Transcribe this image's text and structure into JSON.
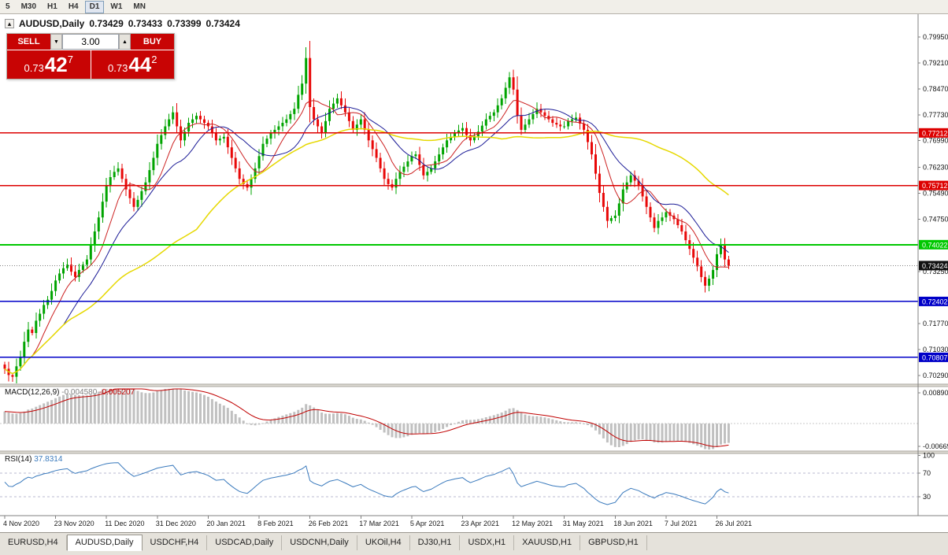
{
  "toolbar": {
    "timeframes": [
      "5",
      "M30",
      "H1",
      "H4",
      "D1",
      "W1",
      "MN"
    ],
    "active": "D1"
  },
  "icons": {
    "collapse": "▴",
    "spin_down": "▼",
    "spin_up": "▲"
  },
  "chart_header": {
    "symbol_period": "AUDUSD,Daily",
    "open": "0.73429",
    "high": "0.73433",
    "low": "0.73399",
    "close": "0.73424"
  },
  "trade_panel": {
    "sell_label": "SELL",
    "buy_label": "BUY",
    "volume": "3.00",
    "sell_price": {
      "prefix": "0.73",
      "big": "42",
      "sup": "7"
    },
    "buy_price": {
      "prefix": "0.73",
      "big": "44",
      "sup": "2"
    }
  },
  "colors": {
    "up_candle": "#00a400",
    "down_candle": "#e80808",
    "macd_hist": "#c0c0c0",
    "macd_signal": "#c00000",
    "current_price_bg": "#111111",
    "accent_red": "#c80404"
  },
  "chart_data": {
    "type": "candlestick",
    "title": "AUDUSD,Daily",
    "x_axis": {
      "labels": [
        "4 Nov 2020",
        "23 Nov 2020",
        "11 Dec 2020",
        "31 Dec 2020",
        "20 Jan 2021",
        "8 Feb 2021",
        "26 Feb 2021",
        "17 Mar 2021",
        "5 Apr 2021",
        "23 Apr 2021",
        "12 May 2021",
        "31 May 2021",
        "18 Jun 2021",
        "7 Jul 2021",
        "26 Jul 2021"
      ],
      "day_index": [
        0,
        13,
        26,
        39,
        52,
        65,
        78,
        91,
        104,
        117,
        130,
        143,
        156,
        169,
        182
      ]
    },
    "y_axis_ticks": [
      "0.79950",
      "0.79210",
      "0.78470",
      "0.77730",
      "0.76990",
      "0.76230",
      "0.75490",
      "0.74750",
      "0.73250",
      "0.71770",
      "0.71030",
      "0.70290"
    ],
    "close": [
      0.7048,
      0.703,
      0.7025,
      0.7055,
      0.708,
      0.7125,
      0.716,
      0.715,
      0.7185,
      0.7205,
      0.723,
      0.7245,
      0.727,
      0.73,
      0.732,
      0.7335,
      0.7345,
      0.7325,
      0.731,
      0.733,
      0.7345,
      0.736,
      0.74,
      0.744,
      0.748,
      0.7525,
      0.757,
      0.7595,
      0.761,
      0.762,
      0.759,
      0.756,
      0.7535,
      0.751,
      0.753,
      0.7555,
      0.758,
      0.7615,
      0.765,
      0.769,
      0.7715,
      0.774,
      0.776,
      0.778,
      0.774,
      0.77,
      0.7725,
      0.775,
      0.776,
      0.777,
      0.776,
      0.775,
      0.774,
      0.772,
      0.77,
      0.7705,
      0.771,
      0.768,
      0.765,
      0.762,
      0.759,
      0.7575,
      0.7565,
      0.759,
      0.762,
      0.7655,
      0.769,
      0.7705,
      0.772,
      0.773,
      0.774,
      0.775,
      0.776,
      0.7775,
      0.779,
      0.783,
      0.7862,
      0.7935,
      0.7795,
      0.776,
      0.774,
      0.772,
      0.7755,
      0.779,
      0.7805,
      0.782,
      0.78,
      0.778,
      0.7755,
      0.773,
      0.7745,
      0.776,
      0.773,
      0.77,
      0.7675,
      0.765,
      0.762,
      0.759,
      0.7575,
      0.7565,
      0.759,
      0.761,
      0.7625,
      0.764,
      0.7655,
      0.766,
      0.763,
      0.76,
      0.761,
      0.762,
      0.764,
      0.766,
      0.768,
      0.77,
      0.771,
      0.772,
      0.7728,
      0.7735,
      0.7715,
      0.77,
      0.7712,
      0.7725,
      0.7742,
      0.776,
      0.777,
      0.778,
      0.78,
      0.782,
      0.785,
      0.788,
      0.7845,
      0.777,
      0.773,
      0.7745,
      0.776,
      0.7775,
      0.779,
      0.778,
      0.777,
      0.776,
      0.775,
      0.7745,
      0.774,
      0.774,
      0.7755,
      0.776,
      0.7765,
      0.7748,
      0.773,
      0.7695,
      0.766,
      0.7605,
      0.755,
      0.751,
      0.747,
      0.7478,
      0.7485,
      0.752,
      0.756,
      0.758,
      0.76,
      0.7585,
      0.757,
      0.754,
      0.751,
      0.748,
      0.745,
      0.747,
      0.748,
      0.7495,
      0.7485,
      0.7475,
      0.7458,
      0.744,
      0.7415,
      0.739,
      0.7365,
      0.734,
      0.731,
      0.7285,
      0.7305,
      0.733,
      0.7375,
      0.74,
      0.736,
      0.7342
    ],
    "horizontal_lines": [
      {
        "value": 0.77212,
        "label": "0.77212",
        "color": "#dd0000",
        "width": 1.4
      },
      {
        "value": 0.75712,
        "label": "0.75712",
        "color": "#dd0000",
        "width": 1.4
      },
      {
        "value": 0.74022,
        "label": "0.74022",
        "color": "#00c800",
        "width": 2
      },
      {
        "value": 0.72402,
        "label": "0.72402",
        "color": "#0000c8",
        "width": 1.6
      },
      {
        "value": 0.70807,
        "label": "0.70807",
        "color": "#0000c8",
        "width": 1.6
      }
    ],
    "current_price": {
      "value": 0.73424,
      "label": "0.73424"
    },
    "moving_averages": [
      {
        "period": 8,
        "color": "#cc2020",
        "width": 1
      },
      {
        "period": 16,
        "color": "#1a1a96",
        "width": 1
      },
      {
        "period": 50,
        "color": "#e6d800",
        "width": 1.5
      }
    ],
    "macd": {
      "label": "MACD(12,26,9)",
      "value": "-0.004580",
      "signal_value": "-0.005207",
      "fast": 12,
      "slow": 26,
      "signal": 9,
      "axis_ticks": [
        "0.00890",
        "-0.00669"
      ]
    },
    "rsi": {
      "label": "RSI(14)",
      "value": "37.8314",
      "period": 14,
      "axis_ticks": [
        "100",
        "70",
        "30"
      ],
      "levels": [
        70,
        30
      ],
      "color": "#3a7abd"
    }
  },
  "bottom_tabs": {
    "items": [
      "EURUSD,H4",
      "AUDUSD,Daily",
      "USDCHF,H4",
      "USDCAD,Daily",
      "USDCNH,Daily",
      "UKOil,H4",
      "DJ30,H1",
      "USDX,H1",
      "XAUUSD,H1",
      "GBPUSD,H1"
    ],
    "active": "AUDUSD,Daily"
  }
}
